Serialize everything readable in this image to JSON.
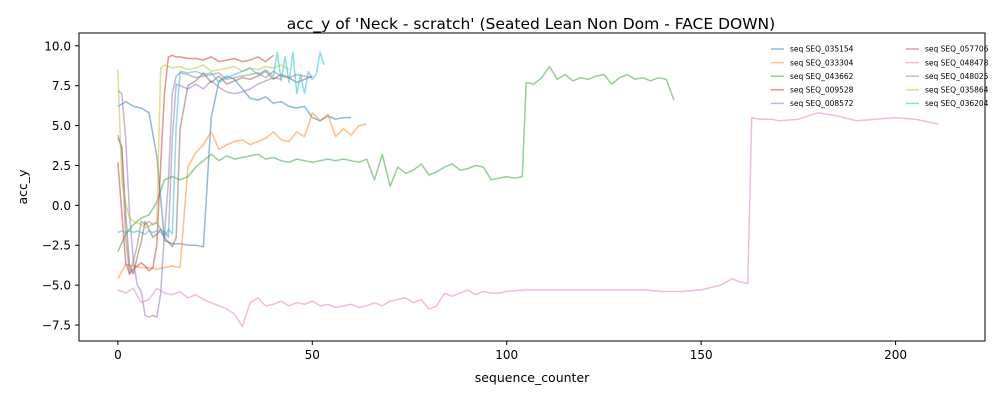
{
  "chart_data": {
    "type": "line",
    "title": "acc_y of 'Neck - scratch' (Seated Lean Non Dom - FACE DOWN)",
    "xlabel": "sequence_counter",
    "ylabel": "acc_y",
    "xlim": [
      -10,
      223
    ],
    "ylim": [
      -8.5,
      10.8
    ],
    "xticks": [
      0,
      50,
      100,
      150,
      200
    ],
    "yticks": [
      -7.5,
      -5.0,
      -2.5,
      0.0,
      2.5,
      5.0,
      7.5,
      10.0
    ],
    "xtick_labels": [
      "0",
      "50",
      "100",
      "150",
      "200"
    ],
    "ytick_labels": [
      "−7.5",
      "−5.0",
      "−2.5",
      "0.0",
      "2.5",
      "5.0",
      "7.5",
      "10.0"
    ],
    "grid": false,
    "legend_position": "top-right",
    "line_alpha": 0.5,
    "series": [
      {
        "name": "seq SEQ_035154",
        "color": "#1f77b4",
        "x": [
          0,
          2,
          4,
          6,
          8,
          10,
          12,
          14,
          16,
          18,
          20,
          22,
          24,
          26,
          28,
          30,
          32,
          34,
          36,
          38,
          40,
          42,
          44,
          46,
          48,
          50,
          52,
          54,
          56,
          58,
          60
        ],
        "y": [
          6.2,
          6.5,
          6.2,
          6.1,
          5.8,
          3.1,
          -2.2,
          -2.4,
          -2.4,
          -2.5,
          -2.5,
          -2.6,
          5.5,
          7.8,
          8.1,
          7.9,
          7.3,
          6.7,
          6.6,
          6.8,
          6.4,
          6.5,
          6.2,
          6.1,
          6.2,
          5.5,
          5.3,
          5.6,
          5.4,
          5.5,
          5.5
        ]
      },
      {
        "name": "seq SEQ_033304",
        "color": "#ff7f0e",
        "x": [
          0,
          2,
          4,
          6,
          8,
          10,
          12,
          14,
          16,
          18,
          20,
          22,
          24,
          26,
          28,
          30,
          32,
          34,
          36,
          38,
          40,
          42,
          44,
          46,
          48,
          50,
          52,
          54,
          56,
          58,
          60,
          62,
          64
        ],
        "y": [
          -4.6,
          -3.7,
          -3.8,
          -3.9,
          -3.9,
          -4.0,
          -3.9,
          -3.8,
          -3.9,
          2.4,
          3.3,
          3.8,
          4.6,
          3.5,
          3.8,
          4.0,
          4.1,
          3.8,
          4.0,
          4.2,
          4.6,
          4.1,
          4.0,
          4.6,
          4.3,
          5.8,
          5.3,
          5.7,
          4.3,
          4.8,
          4.4,
          5.0,
          5.1
        ]
      },
      {
        "name": "seq SEQ_043662",
        "color": "#2ca02c",
        "x": [
          0,
          2,
          4,
          6,
          8,
          10,
          12,
          14,
          16,
          18,
          20,
          22,
          24,
          26,
          28,
          30,
          32,
          34,
          36,
          38,
          40,
          42,
          44,
          46,
          48,
          50,
          52,
          54,
          56,
          58,
          60,
          62,
          64,
          66,
          68,
          70,
          72,
          74,
          76,
          78,
          80,
          82,
          84,
          86,
          88,
          90,
          92,
          94,
          96,
          98,
          100,
          102,
          104,
          105,
          107,
          109,
          111,
          113,
          115,
          117,
          119,
          121,
          123,
          125,
          127,
          129,
          131,
          133,
          135,
          137,
          139,
          141,
          143
        ],
        "y": [
          -2.9,
          -1.8,
          -1.2,
          -0.8,
          -0.6,
          0.2,
          1.6,
          1.8,
          1.6,
          1.8,
          2.4,
          2.8,
          3.2,
          2.8,
          3.1,
          2.9,
          3.0,
          3.1,
          3.2,
          2.9,
          3.0,
          2.8,
          2.7,
          2.9,
          2.8,
          2.7,
          2.8,
          2.9,
          2.8,
          2.9,
          2.8,
          2.7,
          2.9,
          1.6,
          3.2,
          1.2,
          2.4,
          2.0,
          2.2,
          2.6,
          1.9,
          2.1,
          2.4,
          2.6,
          2.2,
          2.3,
          2.5,
          2.4,
          1.6,
          1.7,
          1.8,
          1.7,
          1.8,
          7.7,
          7.6,
          8.0,
          8.7,
          7.9,
          8.2,
          7.8,
          8.0,
          7.9,
          8.1,
          8.2,
          7.6,
          8.0,
          8.2,
          7.9,
          8.0,
          7.8,
          8.0,
          7.9,
          6.6
        ]
      },
      {
        "name": "seq SEQ_009528",
        "color": "#d62728",
        "x": [
          0,
          1,
          2,
          3,
          4,
          5,
          6,
          7,
          8,
          9,
          10,
          11,
          12,
          13,
          14,
          15,
          16,
          18,
          20,
          22,
          24,
          26,
          28,
          30,
          32,
          34,
          36,
          38,
          40
        ],
        "y": [
          2.7,
          -0.5,
          -3.6,
          -4.3,
          -4.0,
          -3.8,
          -3.6,
          -3.8,
          -4.1,
          -3.9,
          -2.5,
          2.6,
          7.0,
          9.3,
          9.4,
          9.3,
          9.3,
          9.2,
          9.2,
          9.1,
          9.3,
          9.0,
          9.1,
          9.2,
          9.0,
          9.1,
          9.3,
          9.0,
          9.4
        ]
      },
      {
        "name": "seq SEQ_008572",
        "color": "#9467bd",
        "x": [
          0,
          1,
          2,
          3,
          4,
          5,
          6,
          7,
          8,
          9,
          10,
          11,
          12,
          13,
          14,
          15,
          16,
          18,
          20,
          22,
          24,
          26,
          28,
          30,
          32,
          34,
          36,
          38,
          40,
          42
        ],
        "y": [
          7.2,
          7.0,
          4.2,
          -0.5,
          -3.5,
          -5.0,
          -5.4,
          -6.9,
          -7.0,
          -6.9,
          -7.0,
          -5.5,
          -1.6,
          -2.0,
          4.2,
          7.6,
          7.5,
          7.3,
          7.6,
          7.3,
          7.8,
          7.4,
          7.1,
          7.0,
          7.1,
          7.3,
          7.6,
          7.8,
          8.0,
          7.9
        ]
      },
      {
        "name": "seq SEQ_057706",
        "color": "#8c564b",
        "x": [
          0,
          1,
          2,
          3,
          4,
          5,
          6,
          7,
          8,
          9,
          10,
          11,
          12,
          13,
          14,
          15,
          16,
          18,
          20,
          22,
          24,
          26,
          28,
          30,
          32,
          34,
          36,
          38,
          40,
          42,
          44,
          46,
          48,
          50
        ],
        "y": [
          4.2,
          3.7,
          -0.5,
          -3.8,
          -4.3,
          -3.2,
          -2.3,
          -1.0,
          -1.5,
          -2.0,
          -1.8,
          -1.5,
          -2.0,
          -2.3,
          -2.6,
          -2.0,
          4.8,
          7.5,
          7.8,
          8.3,
          7.7,
          8.1,
          7.6,
          7.8,
          8.0,
          7.9,
          8.1,
          8.4,
          7.9,
          8.2,
          8.0,
          7.7,
          7.9,
          8.1
        ]
      },
      {
        "name": "seq SEQ_048478",
        "color": "#e377c2",
        "x": [
          0,
          2,
          4,
          6,
          8,
          10,
          12,
          14,
          16,
          18,
          20,
          22,
          24,
          26,
          28,
          30,
          32,
          34,
          36,
          38,
          40,
          42,
          44,
          46,
          48,
          50,
          52,
          54,
          56,
          58,
          60,
          62,
          64,
          66,
          68,
          70,
          72,
          74,
          76,
          78,
          80,
          82,
          84,
          86,
          88,
          90,
          92,
          94,
          96,
          98,
          100,
          105,
          110,
          115,
          120,
          125,
          130,
          135,
          140,
          145,
          150,
          155,
          158,
          160,
          162,
          163,
          165,
          168,
          170,
          175,
          180,
          185,
          190,
          195,
          200,
          205,
          211
        ],
        "y": [
          -5.3,
          -5.5,
          -5.2,
          -6.1,
          -5.9,
          -5.2,
          -5.5,
          -5.6,
          -5.4,
          -5.8,
          -5.6,
          -5.9,
          -6.1,
          -6.3,
          -6.5,
          -6.8,
          -7.6,
          -6.1,
          -5.8,
          -6.3,
          -6.2,
          -6.0,
          -6.3,
          -6.1,
          -6.2,
          -6.0,
          -6.3,
          -6.2,
          -6.4,
          -6.3,
          -6.2,
          -6.4,
          -6.3,
          -6.1,
          -6.3,
          -6.0,
          -5.9,
          -5.8,
          -6.1,
          -5.9,
          -6.5,
          -6.3,
          -5.5,
          -5.7,
          -5.5,
          -5.3,
          -5.6,
          -5.4,
          -5.5,
          -5.5,
          -5.4,
          -5.3,
          -5.3,
          -5.3,
          -5.3,
          -5.3,
          -5.3,
          -5.3,
          -5.4,
          -5.4,
          -5.3,
          -5.0,
          -4.6,
          -4.8,
          -4.9,
          5.5,
          5.4,
          5.4,
          5.3,
          5.4,
          5.8,
          5.6,
          5.3,
          5.4,
          5.5,
          5.4,
          5.1
        ]
      },
      {
        "name": "seq SEQ_048025",
        "color": "#7f7f7f",
        "x": [
          0,
          1,
          2,
          3,
          4,
          5,
          6,
          7,
          8,
          9,
          10,
          11,
          12,
          13,
          14,
          15,
          16,
          18,
          20,
          22,
          24,
          26,
          28,
          30,
          32,
          34,
          36,
          38,
          40,
          42,
          44,
          46,
          48,
          50
        ],
        "y": [
          4.4,
          3.5,
          -2.0,
          -4.3,
          -3.5,
          -2.5,
          -1.0,
          -1.2,
          -1.0,
          -1.2,
          -1.1,
          -1.5,
          -1.8,
          1.5,
          7.0,
          8.1,
          8.3,
          8.2,
          8.0,
          8.1,
          8.2,
          8.3,
          7.9,
          8.0,
          8.1,
          8.2,
          8.3,
          8.0,
          8.4,
          8.1,
          8.0,
          8.2,
          8.1,
          8.0
        ]
      },
      {
        "name": "seq SEQ_035864",
        "color": "#bcbd22",
        "x": [
          0,
          1,
          2,
          3,
          4,
          5,
          6,
          7,
          8,
          9,
          10,
          11,
          12,
          14,
          16,
          18,
          20,
          22,
          24,
          26,
          28,
          30,
          32,
          34,
          36,
          38,
          40,
          42,
          44
        ],
        "y": [
          8.5,
          1.5,
          0.2,
          -0.8,
          -1.0,
          -1.1,
          -1.2,
          -1.4,
          -1.3,
          -1.2,
          -1.0,
          8.6,
          8.8,
          8.6,
          8.7,
          8.5,
          8.6,
          8.8,
          8.4,
          8.5,
          8.6,
          8.7,
          8.4,
          8.6,
          8.5,
          8.7,
          8.6,
          8.8,
          8.5
        ]
      },
      {
        "name": "seq SEQ_036204",
        "color": "#17becf",
        "x": [
          0,
          1,
          2,
          3,
          4,
          5,
          6,
          7,
          8,
          9,
          10,
          11,
          12,
          13,
          14,
          15,
          16,
          18,
          20,
          22,
          24,
          26,
          28,
          30,
          32,
          34,
          36,
          38,
          40,
          41,
          42,
          43,
          44,
          45,
          46,
          47,
          48,
          49,
          50,
          51,
          52,
          53
        ],
        "y": [
          -1.7,
          -1.6,
          -1.7,
          -1.6,
          -1.7,
          -1.6,
          -1.7,
          -1.8,
          -1.6,
          -1.7,
          -1.6,
          -1.7,
          -2.0,
          -1.5,
          -1.8,
          5.0,
          8.4,
          8.3,
          8.4,
          8.2,
          8.3,
          7.7,
          8.0,
          8.2,
          8.4,
          8.6,
          8.2,
          8.5,
          8.1,
          9.6,
          7.8,
          9.3,
          7.7,
          9.6,
          7.0,
          8.2,
          7.0,
          8.4,
          7.9,
          8.2,
          9.6,
          8.8
        ]
      }
    ]
  }
}
